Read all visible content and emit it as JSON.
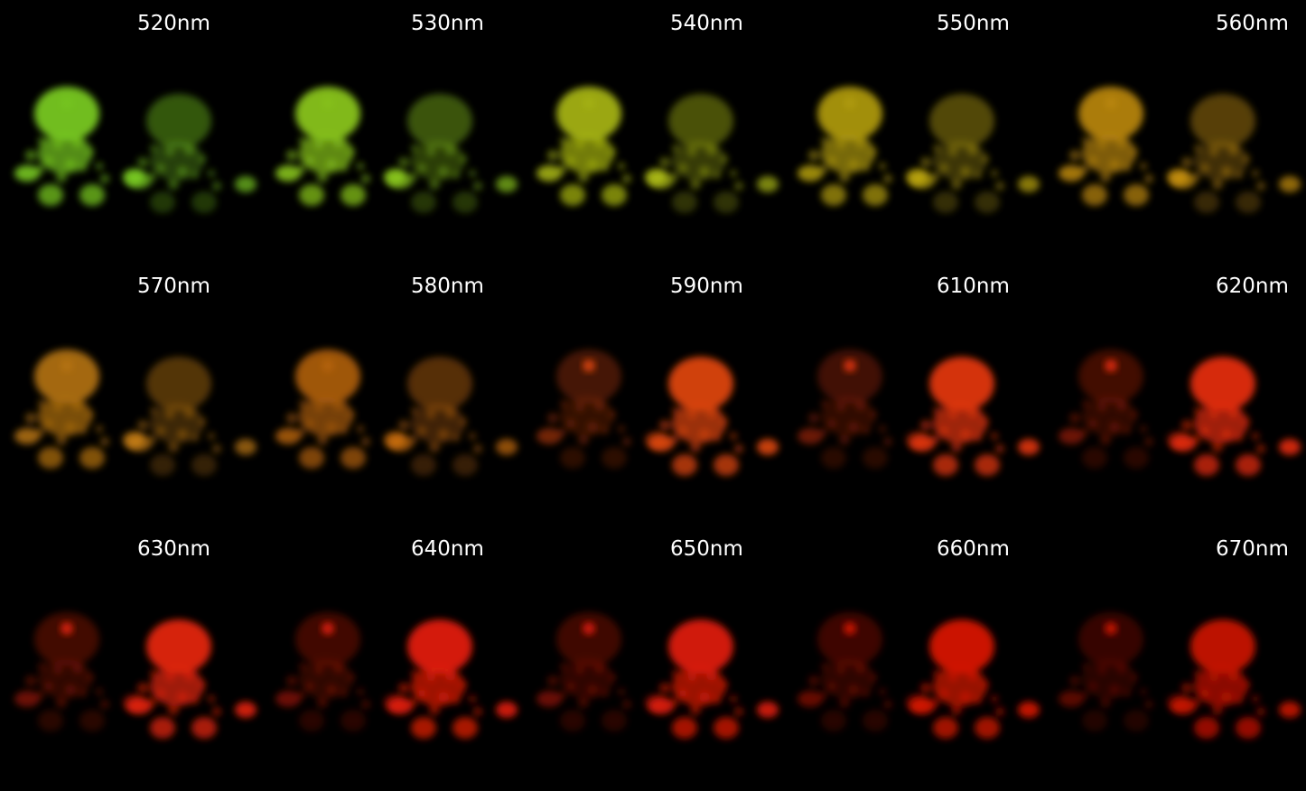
{
  "panels": [
    {
      "label": "520nm",
      "color": "#7ed321",
      "left_intensity": 0.95,
      "right_intensity": 0.75,
      "emitter": "left"
    },
    {
      "label": "530nm",
      "color": "#8fce1c",
      "left_intensity": 0.95,
      "right_intensity": 0.75,
      "emitter": "left"
    },
    {
      "label": "540nm",
      "color": "#b5c414",
      "left_intensity": 0.9,
      "right_intensity": 0.75,
      "emitter": "left"
    },
    {
      "label": "550nm",
      "color": "#c9b112",
      "left_intensity": 0.85,
      "right_intensity": 0.75,
      "emitter": "left"
    },
    {
      "label": "560nm",
      "color": "#d49a12",
      "left_intensity": 0.85,
      "right_intensity": 0.75,
      "emitter": "left"
    },
    {
      "label": "570nm",
      "color": "#d88a14",
      "left_intensity": 0.8,
      "right_intensity": 0.7,
      "emitter": "left"
    },
    {
      "label": "580nm",
      "color": "#e07a12",
      "left_intensity": 0.75,
      "right_intensity": 0.7,
      "emitter": "left"
    },
    {
      "label": "590nm",
      "color": "#e84a0e",
      "left_intensity": 0.55,
      "right_intensity": 0.95,
      "emitter": "right"
    },
    {
      "label": "610nm",
      "color": "#ec380c",
      "left_intensity": 0.5,
      "right_intensity": 0.95,
      "emitter": "right"
    },
    {
      "label": "620nm",
      "color": "#ee2e0a",
      "left_intensity": 0.5,
      "right_intensity": 0.95,
      "emitter": "right"
    },
    {
      "label": "630nm",
      "color": "#ee260a",
      "left_intensity": 0.5,
      "right_intensity": 0.95,
      "emitter": "right"
    },
    {
      "label": "640nm",
      "color": "#ec2008",
      "left_intensity": 0.5,
      "right_intensity": 0.95,
      "emitter": "right"
    },
    {
      "label": "650nm",
      "color": "#e81c08",
      "left_intensity": 0.5,
      "right_intensity": 0.95,
      "emitter": "right"
    },
    {
      "label": "660nm",
      "color": "#e21806",
      "left_intensity": 0.5,
      "right_intensity": 0.95,
      "emitter": "right"
    },
    {
      "label": "670nm",
      "color": "#dc1606",
      "left_intensity": 0.45,
      "right_intensity": 0.9,
      "emitter": "right"
    }
  ]
}
